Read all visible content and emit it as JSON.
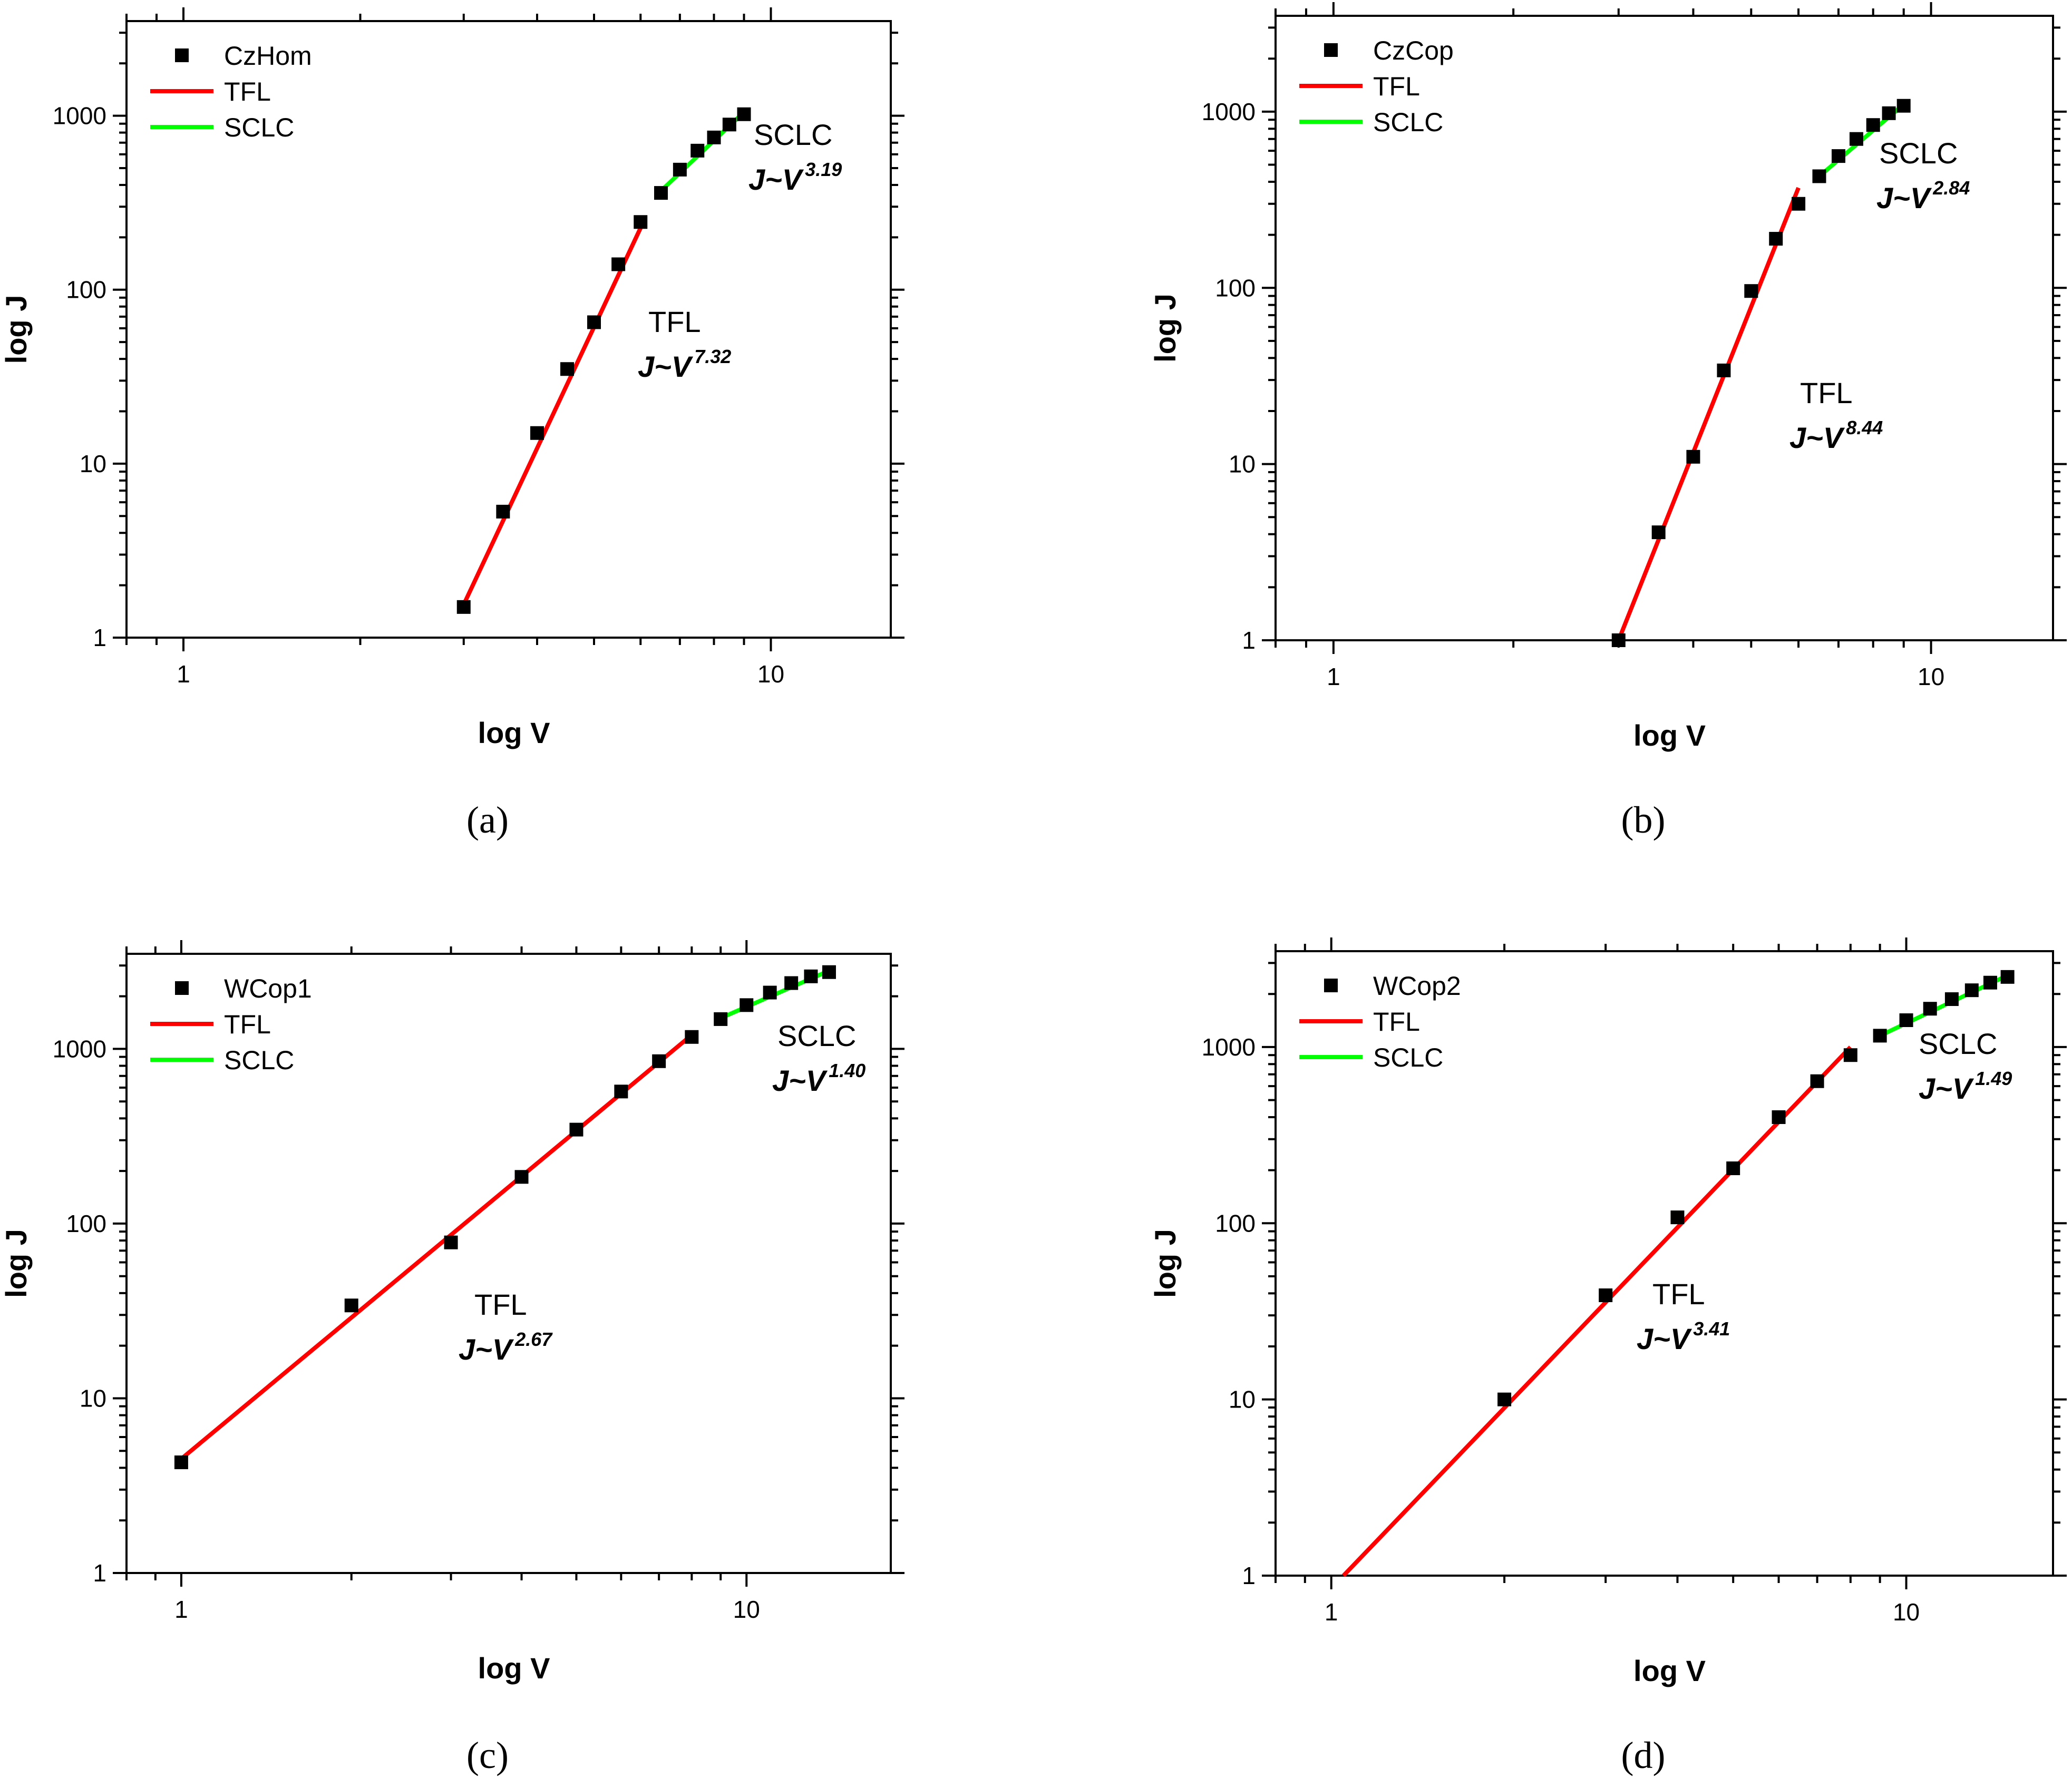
{
  "colors": {
    "tfl": "#ff0000",
    "sclc": "#00ff00",
    "marker": "#000000",
    "axis": "#000000"
  },
  "chart_data": [
    {
      "type": "scatter",
      "panel": "(a)",
      "xlabel": "log V",
      "ylabel": "log J",
      "xscale": "log",
      "yscale": "log",
      "xlim": [
        0.8,
        16
      ],
      "ylim": [
        1,
        3500
      ],
      "xticks": [
        1,
        10
      ],
      "xtick_labels": [
        "1",
        "10"
      ],
      "yticks": [
        1,
        10,
        100,
        1000
      ],
      "ytick_labels": [
        "1",
        "10",
        "100",
        "1000"
      ],
      "legend": {
        "position": "top-left",
        "entries": [
          "CzHom",
          "TFL",
          "SCLC"
        ]
      },
      "series": [
        {
          "name": "CzHom",
          "kind": "markers",
          "x": [
            3.0,
            3.5,
            4.0,
            4.5,
            5.0,
            5.5,
            6.0,
            6.5,
            7.0,
            7.5,
            8.0,
            8.5,
            9.0
          ],
          "y": [
            1.5,
            5.3,
            15,
            35,
            65,
            140,
            245,
            360,
            490,
            630,
            750,
            890,
            1020
          ]
        },
        {
          "name": "TFL",
          "kind": "line",
          "x": [
            3.0,
            6.1
          ],
          "y": [
            1.55,
            255
          ]
        },
        {
          "name": "SCLC",
          "kind": "line",
          "x": [
            6.5,
            9.0
          ],
          "y": [
            370,
            1050
          ]
        }
      ],
      "annotations": [
        {
          "label": "TFL",
          "eq": "J~V",
          "exp": "7.32"
        },
        {
          "label": "SCLC",
          "eq": "J~V",
          "exp": "3.19"
        }
      ]
    },
    {
      "type": "scatter",
      "panel": "(b)",
      "xlabel": "log V",
      "ylabel": "log J",
      "xscale": "log",
      "yscale": "log",
      "xlim": [
        0.8,
        16
      ],
      "ylim": [
        1,
        3500
      ],
      "xticks": [
        1,
        10
      ],
      "xtick_labels": [
        "1",
        "10"
      ],
      "yticks": [
        1,
        10,
        100,
        1000
      ],
      "ytick_labels": [
        "1",
        "10",
        "100",
        "1000"
      ],
      "legend": {
        "position": "top-left",
        "entries": [
          "CzCop",
          "TFL",
          "SCLC"
        ]
      },
      "series": [
        {
          "name": "CzCop",
          "kind": "markers",
          "x": [
            3.0,
            3.5,
            4.0,
            4.5,
            5.0,
            5.5,
            6.0,
            6.5,
            7.0,
            7.5,
            8.0,
            8.5,
            9.0
          ],
          "y": [
            1.0,
            4.1,
            11,
            34,
            96,
            190,
            300,
            430,
            560,
            700,
            840,
            980,
            1080
          ]
        },
        {
          "name": "TFL",
          "kind": "line",
          "x": [
            3.0,
            6.0
          ],
          "y": [
            1.0,
            370
          ]
        },
        {
          "name": "SCLC",
          "kind": "line",
          "x": [
            6.5,
            9.0
          ],
          "y": [
            430,
            1100
          ]
        }
      ],
      "annotations": [
        {
          "label": "TFL",
          "eq": "J~V",
          "exp": "8.44"
        },
        {
          "label": "SCLC",
          "eq": "J~V",
          "exp": "2.84"
        }
      ]
    },
    {
      "type": "scatter",
      "panel": "(c)",
      "xlabel": "log V",
      "ylabel": "log J",
      "xscale": "log",
      "yscale": "log",
      "xlim": [
        0.8,
        18
      ],
      "ylim": [
        1,
        3500
      ],
      "xticks": [
        1,
        10
      ],
      "xtick_labels": [
        "1",
        "10"
      ],
      "yticks": [
        1,
        10,
        100,
        1000
      ],
      "ytick_labels": [
        "1",
        "10",
        "100",
        "1000"
      ],
      "legend": {
        "position": "top-left",
        "entries": [
          "WCop1",
          "TFL",
          "SCLC"
        ]
      },
      "series": [
        {
          "name": "WCop1",
          "kind": "markers",
          "x": [
            1,
            2,
            3,
            4,
            5,
            6,
            7,
            8,
            9,
            10,
            11,
            12,
            13,
            14
          ],
          "y": [
            4.3,
            34,
            78,
            185,
            345,
            570,
            850,
            1170,
            1480,
            1780,
            2100,
            2380,
            2600,
            2750
          ]
        },
        {
          "name": "TFL",
          "kind": "line",
          "x": [
            1.0,
            8.0
          ],
          "y": [
            4.5,
            1200
          ]
        },
        {
          "name": "SCLC",
          "kind": "line",
          "x": [
            9.0,
            14.0
          ],
          "y": [
            1500,
            2800
          ]
        }
      ],
      "annotations": [
        {
          "label": "TFL",
          "eq": "J~V",
          "exp": "2.67"
        },
        {
          "label": "SCLC",
          "eq": "J~V",
          "exp": "1.40"
        }
      ]
    },
    {
      "type": "scatter",
      "panel": "(d)",
      "xlabel": "log V",
      "ylabel": "log J",
      "xscale": "log",
      "yscale": "log",
      "xlim": [
        0.8,
        18
      ],
      "ylim": [
        1,
        3500
      ],
      "xticks": [
        1,
        10
      ],
      "xtick_labels": [
        "1",
        "10"
      ],
      "yticks": [
        1,
        10,
        100,
        1000
      ],
      "ytick_labels": [
        "1",
        "10",
        "100",
        "1000"
      ],
      "legend": {
        "position": "top-left",
        "entries": [
          "WCop2",
          "TFL",
          "SCLC"
        ]
      },
      "series": [
        {
          "name": "WCop2",
          "kind": "markers",
          "x": [
            2,
            3,
            4,
            5,
            6,
            7,
            8,
            9,
            10,
            11,
            12,
            13,
            14,
            15
          ],
          "y": [
            10,
            39,
            108,
            205,
            400,
            640,
            900,
            1160,
            1420,
            1650,
            1870,
            2100,
            2320,
            2500
          ]
        },
        {
          "name": "TFL",
          "kind": "line",
          "x": [
            1.05,
            8.0
          ],
          "y": [
            1.0,
            1000
          ]
        },
        {
          "name": "SCLC",
          "kind": "line",
          "x": [
            9.0,
            15.0
          ],
          "y": [
            1160,
            2550
          ]
        }
      ],
      "annotations": [
        {
          "label": "TFL",
          "eq": "J~V",
          "exp": "3.41"
        },
        {
          "label": "SCLC",
          "eq": "J~V",
          "exp": "1.49"
        }
      ]
    }
  ]
}
